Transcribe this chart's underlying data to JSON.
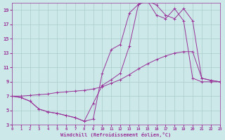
{
  "bg_color": "#cce8e8",
  "grid_color": "#aacccc",
  "line_color": "#993399",
  "xlim": [
    0,
    23
  ],
  "ylim": [
    3,
    20
  ],
  "xticks": [
    0,
    1,
    2,
    3,
    4,
    5,
    6,
    7,
    8,
    9,
    10,
    11,
    12,
    13,
    14,
    15,
    16,
    17,
    18,
    19,
    20,
    21,
    22,
    23
  ],
  "yticks": [
    3,
    5,
    7,
    9,
    11,
    13,
    15,
    17,
    19
  ],
  "xlabel": "Windchill (Refroidissement éolien,°C)",
  "curve1_x": [
    0,
    1,
    2,
    3,
    4,
    5,
    6,
    7,
    8,
    9,
    10,
    11,
    12,
    13,
    14,
    15,
    16,
    17,
    18,
    19,
    20,
    21,
    22,
    23
  ],
  "curve1_y": [
    7.0,
    6.8,
    6.3,
    5.2,
    4.8,
    4.6,
    4.3,
    4.0,
    3.5,
    3.8,
    10.2,
    13.5,
    14.2,
    18.6,
    19.8,
    20.3,
    19.7,
    18.3,
    17.8,
    19.2,
    17.5,
    9.5,
    9.2,
    9.0
  ],
  "curve2_x": [
    0,
    1,
    2,
    3,
    4,
    5,
    6,
    7,
    8,
    9,
    10,
    11,
    12,
    13,
    14,
    15,
    16,
    17,
    18,
    19,
    20,
    21,
    22,
    23
  ],
  "curve2_y": [
    7.0,
    7.0,
    7.1,
    7.2,
    7.3,
    7.5,
    7.6,
    7.7,
    7.8,
    8.0,
    8.3,
    8.8,
    9.3,
    10.0,
    10.8,
    11.5,
    12.1,
    12.6,
    13.0,
    13.2,
    13.2,
    9.5,
    9.2,
    9.0
  ],
  "curve3_x": [
    0,
    1,
    2,
    3,
    4,
    5,
    6,
    7,
    8,
    9,
    10,
    11,
    12,
    13,
    14,
    15,
    16,
    17,
    18,
    19,
    20,
    21,
    22,
    23
  ],
  "curve3_y": [
    7.0,
    6.8,
    6.3,
    5.2,
    4.8,
    4.6,
    4.3,
    4.0,
    3.5,
    6.0,
    8.5,
    9.3,
    10.2,
    14.0,
    19.8,
    20.3,
    18.3,
    17.8,
    19.2,
    17.5,
    9.5,
    9.0,
    9.0,
    9.0
  ]
}
